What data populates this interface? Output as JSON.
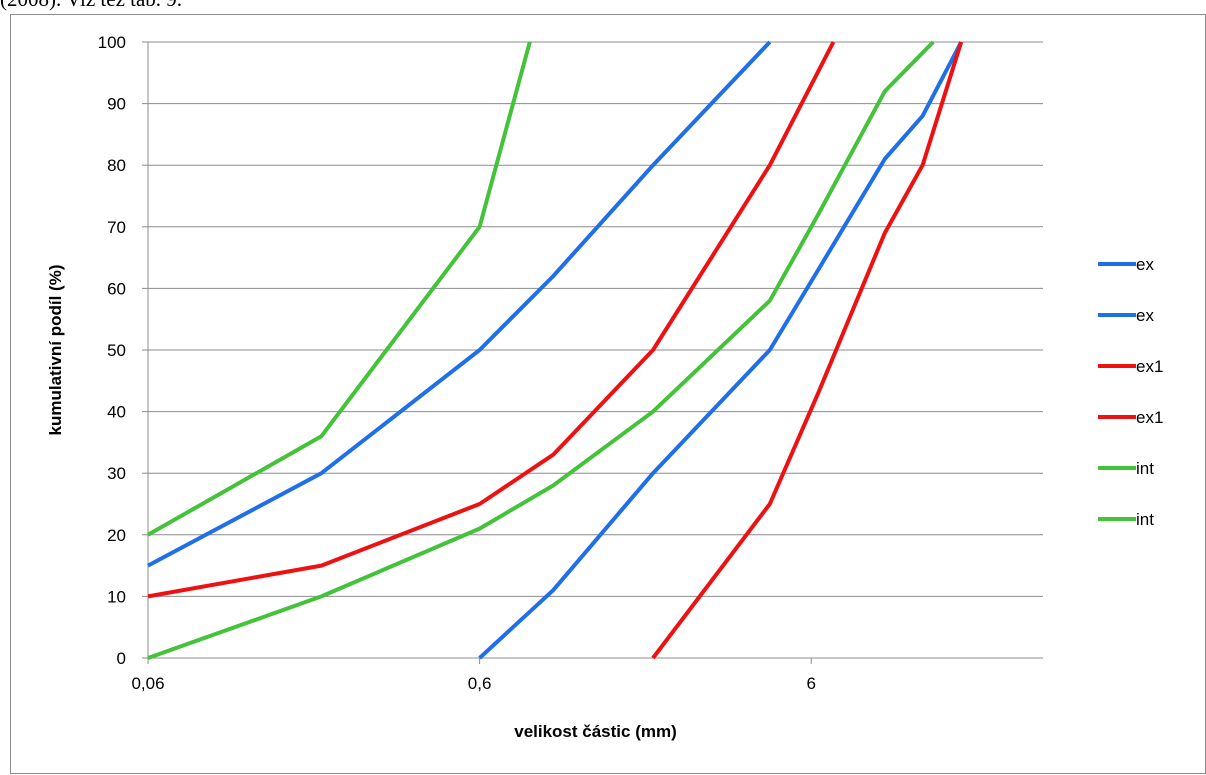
{
  "page": {
    "top_text": "(2008). Viz též tab. 9."
  },
  "colors": {
    "ex": "#1f6fe8",
    "ex1": "#ee1111",
    "int": "#44c23a",
    "grid": "#8c8c8c"
  },
  "chart_data": {
    "type": "line",
    "xlabel": "velikost částic (mm)",
    "ylabel": "kumulativní podíl (%)",
    "x_scale": "log",
    "xlim": [
      0.06,
      30
    ],
    "ylim": [
      0,
      100
    ],
    "x_ticks": [
      {
        "value": 0.06,
        "label": "0,06"
      },
      {
        "value": 0.6,
        "label": "0,6"
      },
      {
        "value": 6,
        "label": "6"
      }
    ],
    "y_ticks": [
      0,
      10,
      20,
      30,
      40,
      50,
      60,
      70,
      80,
      90,
      100
    ],
    "grid": "horizontal",
    "legend_position": "right",
    "series": [
      {
        "name": "ex",
        "color_key": "ex",
        "points": [
          [
            0.06,
            15
          ],
          [
            0.2,
            30
          ],
          [
            0.6,
            50
          ],
          [
            1.0,
            62
          ],
          [
            2.0,
            80
          ],
          [
            4.5,
            100
          ]
        ]
      },
      {
        "name": "ex",
        "color_key": "ex",
        "points": [
          [
            0.6,
            0
          ],
          [
            1.0,
            11
          ],
          [
            2.0,
            30
          ],
          [
            4.5,
            50
          ],
          [
            6.3,
            63
          ],
          [
            10,
            81
          ],
          [
            13,
            88
          ],
          [
            17,
            100
          ]
        ]
      },
      {
        "name": "ex1",
        "color_key": "ex1",
        "points": [
          [
            0.06,
            10
          ],
          [
            0.2,
            15
          ],
          [
            0.6,
            25
          ],
          [
            1.0,
            33
          ],
          [
            2.0,
            50
          ],
          [
            4.5,
            80
          ],
          [
            7.0,
            100
          ]
        ]
      },
      {
        "name": "ex1",
        "color_key": "ex1",
        "points": [
          [
            2.0,
            0
          ],
          [
            4.5,
            25
          ],
          [
            6.3,
            43
          ],
          [
            10,
            69
          ],
          [
            13,
            80
          ],
          [
            17,
            100
          ]
        ]
      },
      {
        "name": "int",
        "color_key": "int",
        "points": [
          [
            0.06,
            20
          ],
          [
            0.2,
            36
          ],
          [
            0.6,
            70
          ],
          [
            0.85,
            100
          ]
        ]
      },
      {
        "name": "int",
        "color_key": "int",
        "points": [
          [
            0.06,
            0
          ],
          [
            0.2,
            10
          ],
          [
            0.6,
            21
          ],
          [
            1.0,
            28
          ],
          [
            2.0,
            40
          ],
          [
            4.5,
            58
          ],
          [
            6.3,
            72
          ],
          [
            10,
            92
          ],
          [
            14,
            100
          ]
        ]
      }
    ]
  }
}
